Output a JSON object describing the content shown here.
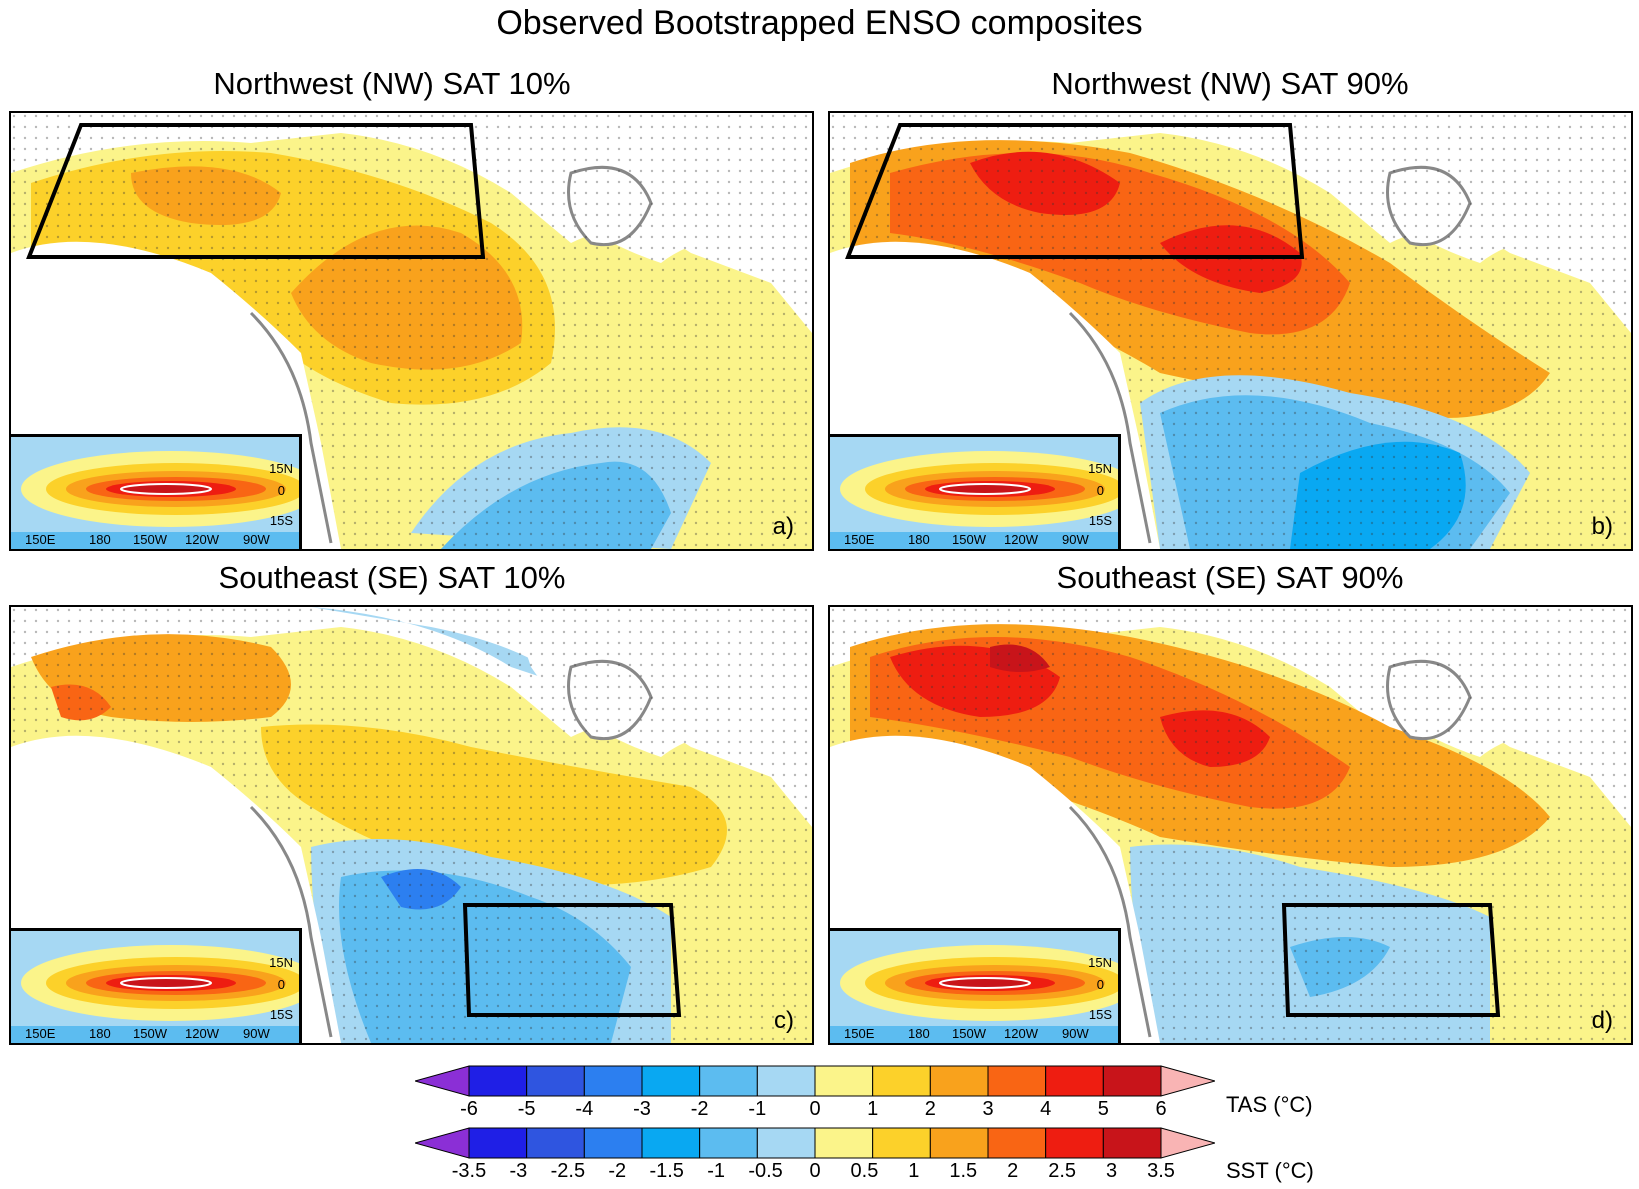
{
  "title": "Observed Bootstrapped ENSO composites",
  "panels": [
    {
      "title": "Northwest (NW) SAT 10%",
      "letter": "a)"
    },
    {
      "title": "Northwest (NW) SAT 90%",
      "letter": "b)"
    },
    {
      "title": "Southeast (SE) SAT 10%",
      "letter": "c)"
    },
    {
      "title": "Southeast (SE) SAT 90%",
      "letter": "d)"
    }
  ],
  "inset": {
    "lat_labels": [
      "15N",
      "0",
      "15S"
    ],
    "lon_labels": [
      "150E",
      "180",
      "150W",
      "120W",
      "90W"
    ]
  },
  "colorbars": {
    "colors": [
      "#1f1fe6",
      "#2f55e0",
      "#2c7ff0",
      "#09a8f2",
      "#5cbcf0",
      "#a6d8f3",
      "#fbf48a",
      "#fcd12a",
      "#f9a21c",
      "#f96514",
      "#ee1d11",
      "#c8141a"
    ],
    "under_color": "#8b2fd6",
    "over_color": "#f9b4b4",
    "tas": {
      "label": "TAS (°C)",
      "ticks": [
        "-6",
        "-5",
        "-4",
        "-3",
        "-2",
        "-1",
        "0",
        "1",
        "2",
        "3",
        "4",
        "5",
        "6"
      ]
    },
    "sst": {
      "label": "SST (°C)",
      "ticks": [
        "-3.5",
        "-3",
        "-2.5",
        "-2",
        "-1.5",
        "-1",
        "-0.5",
        "0",
        "0.5",
        "1",
        "1.5",
        "2",
        "2.5",
        "3",
        "3.5"
      ]
    }
  }
}
